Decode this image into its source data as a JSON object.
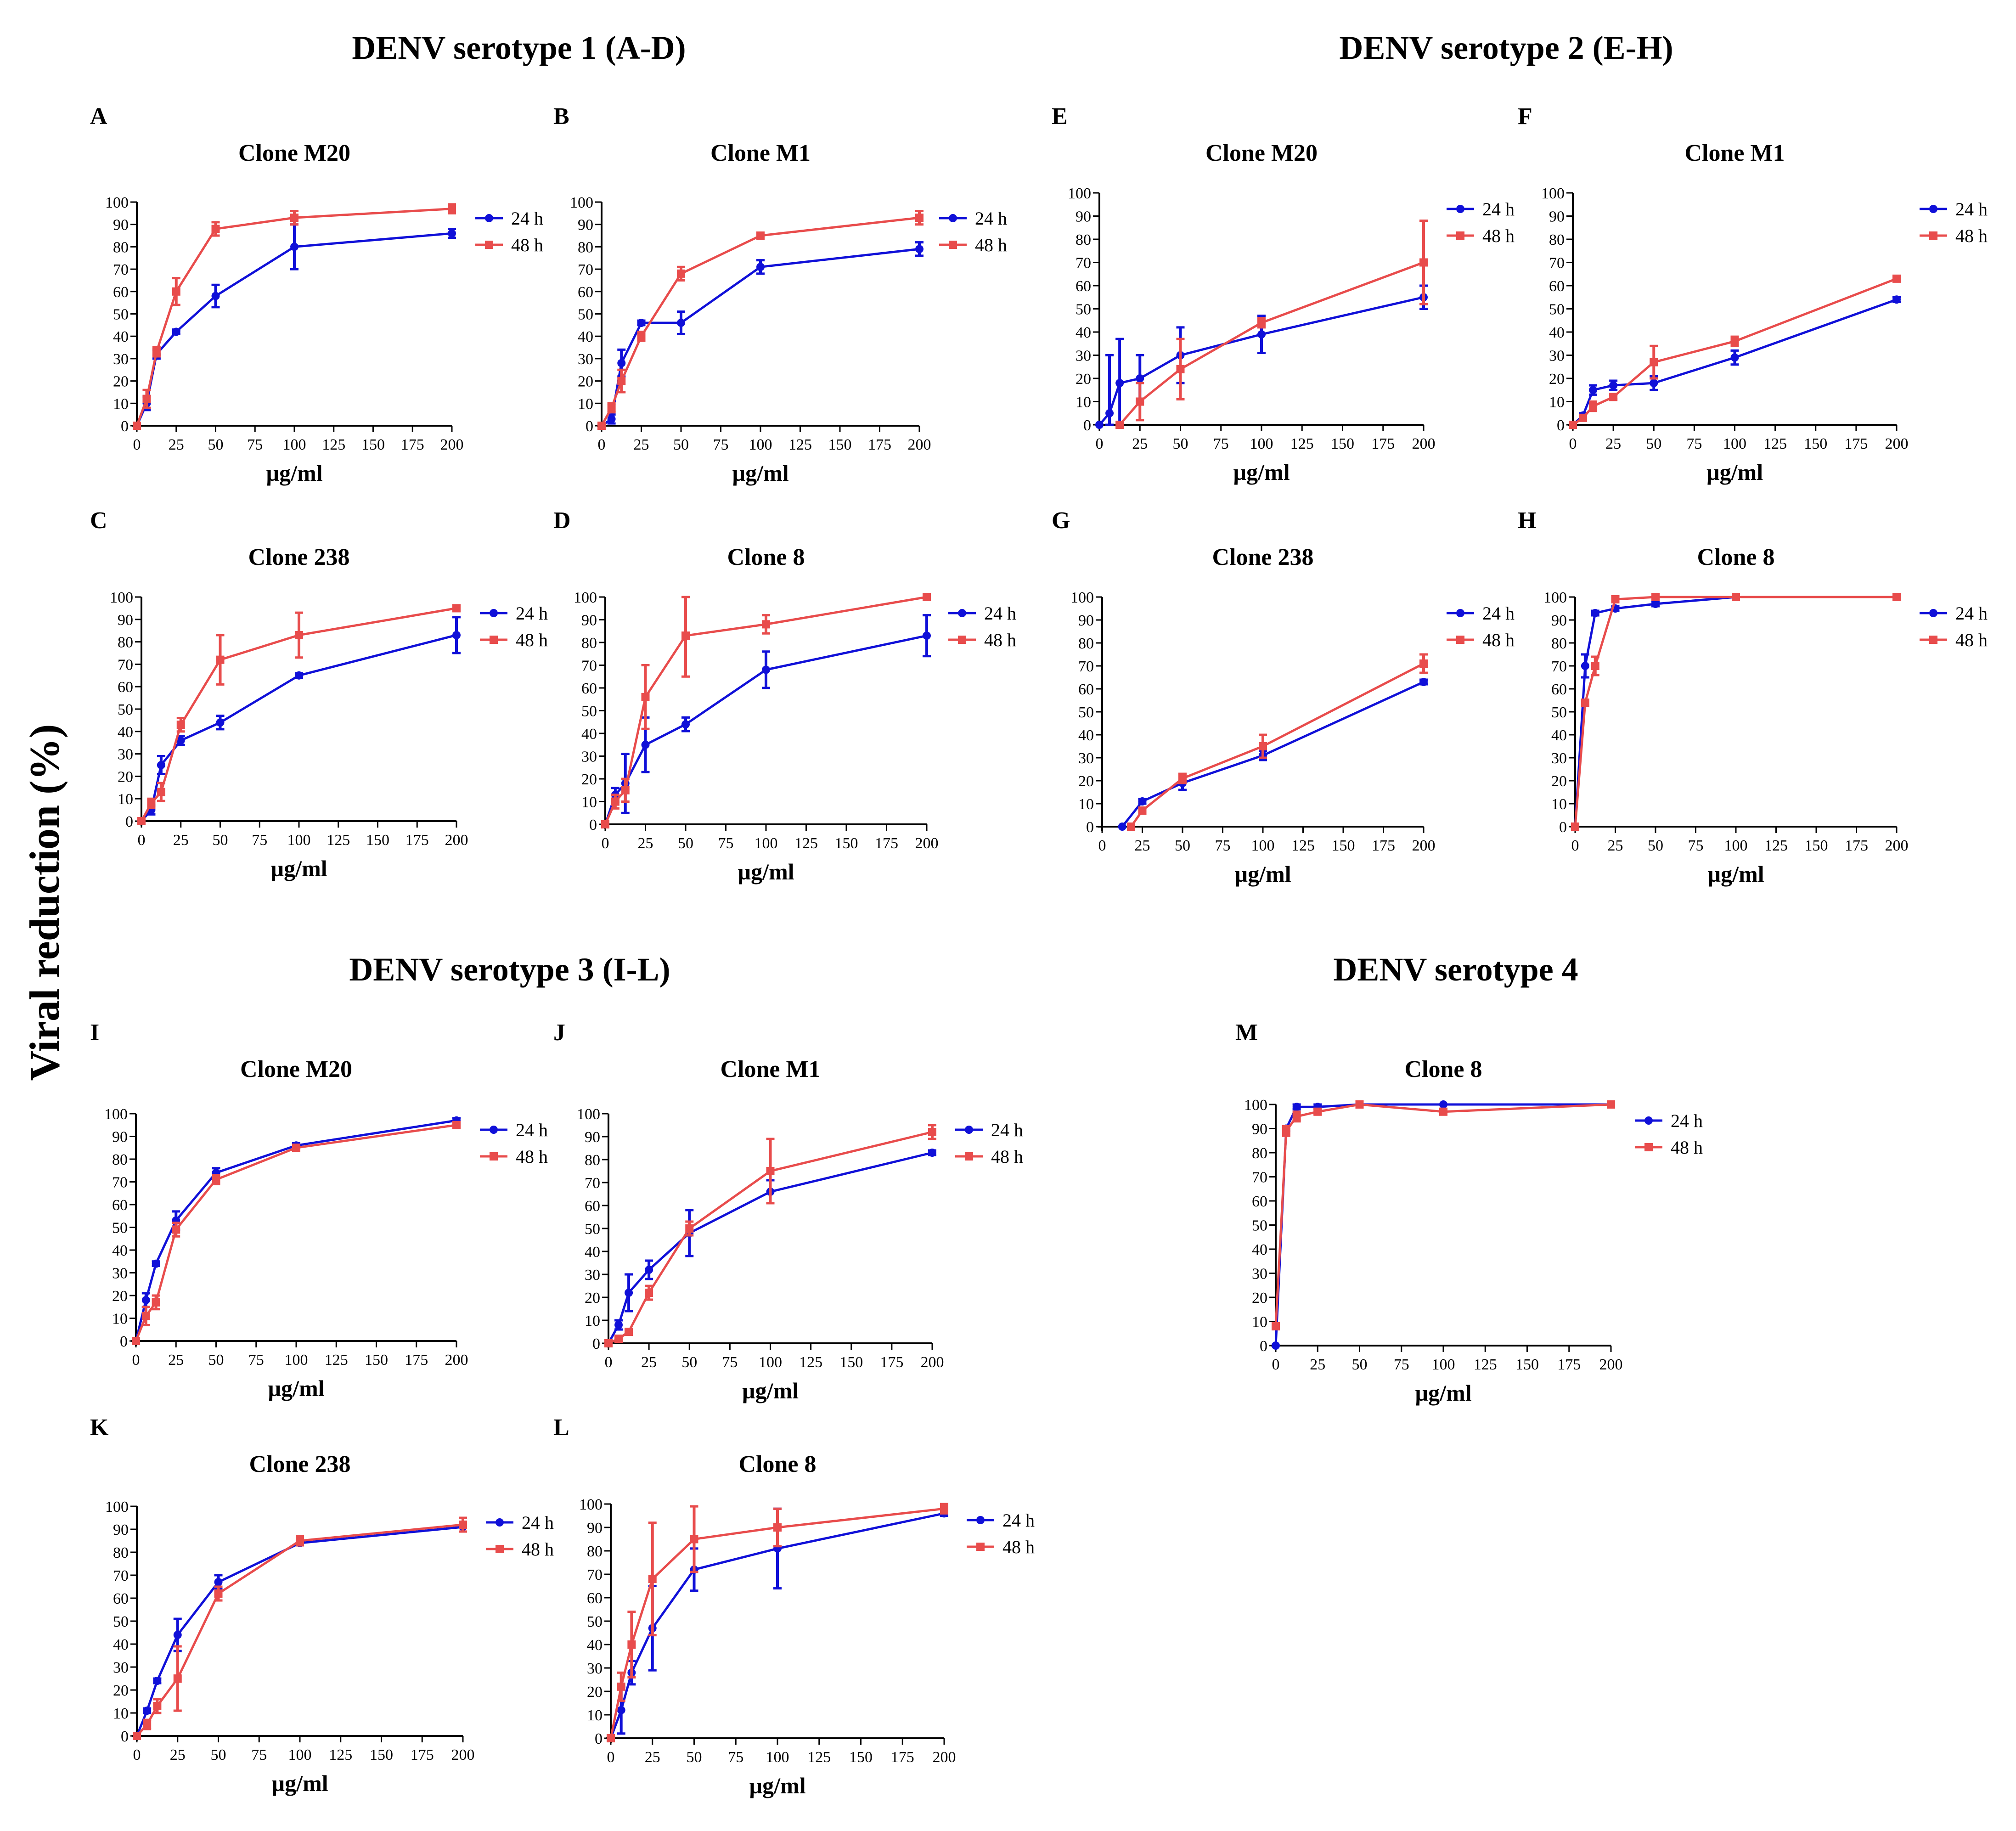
{
  "y_axis_label": "Viral reduction (%)",
  "colors": {
    "h24": "#1010d8",
    "h48": "#e84c4c"
  },
  "section_titles": [
    "DENV serotype 1 (A-D)",
    "DENV serotype 2 (E-H)",
    "DENV serotype 3 (I-L)",
    "DENV serotype 4"
  ],
  "chart_data": [
    {
      "panel": "A",
      "title": "Clone M20",
      "type": "line",
      "xlabel": "µg/ml",
      "xlim": [
        0,
        200
      ],
      "ylim": [
        0,
        100
      ],
      "xticks": [
        0,
        25,
        50,
        75,
        100,
        125,
        150,
        175,
        200
      ],
      "yticks": [
        0,
        10,
        20,
        30,
        40,
        50,
        60,
        70,
        80,
        90,
        100
      ],
      "series": [
        {
          "name": "24 h",
          "x": [
            0,
            6.25,
            12.5,
            25,
            50,
            100,
            200
          ],
          "y": [
            0,
            10,
            32,
            42,
            58,
            80,
            86
          ],
          "err": [
            0,
            3,
            2,
            1,
            5,
            10,
            2
          ]
        },
        {
          "name": "48 h",
          "x": [
            0,
            6.25,
            12.5,
            25,
            50,
            100,
            200
          ],
          "y": [
            0,
            12,
            33,
            60,
            88,
            93,
            97
          ],
          "err": [
            0,
            4,
            2,
            6,
            3,
            3,
            2
          ]
        }
      ]
    },
    {
      "panel": "B",
      "title": "Clone M1",
      "type": "line",
      "xlabel": "µg/ml",
      "xlim": [
        0,
        200
      ],
      "ylim": [
        0,
        100
      ],
      "xticks": [
        0,
        25,
        50,
        75,
        100,
        125,
        150,
        175,
        200
      ],
      "yticks": [
        0,
        10,
        20,
        30,
        40,
        50,
        60,
        70,
        80,
        90,
        100
      ],
      "series": [
        {
          "name": "24 h",
          "x": [
            0,
            6.25,
            12.5,
            25,
            50,
            100,
            200
          ],
          "y": [
            0,
            3,
            28,
            46,
            46,
            71,
            79
          ],
          "err": [
            0,
            2,
            6,
            1,
            5,
            3,
            3
          ]
        },
        {
          "name": "48 h",
          "x": [
            0,
            6.25,
            12.5,
            25,
            50,
            100,
            200
          ],
          "y": [
            0,
            8,
            20,
            40,
            68,
            85,
            93
          ],
          "err": [
            0,
            2,
            5,
            2,
            3,
            1,
            3
          ]
        }
      ]
    },
    {
      "panel": "C",
      "title": "Clone 238",
      "type": "line",
      "xlabel": "µg/ml",
      "xlim": [
        0,
        200
      ],
      "ylim": [
        0,
        100
      ],
      "xticks": [
        0,
        25,
        50,
        75,
        100,
        125,
        150,
        175,
        200
      ],
      "yticks": [
        0,
        10,
        20,
        30,
        40,
        50,
        60,
        70,
        80,
        90,
        100
      ],
      "series": [
        {
          "name": "24 h",
          "x": [
            0,
            6.25,
            12.5,
            25,
            50,
            100,
            200
          ],
          "y": [
            0,
            5,
            25,
            36,
            44,
            65,
            83
          ],
          "err": [
            0,
            2,
            4,
            2,
            3,
            1,
            8
          ]
        },
        {
          "name": "48 h",
          "x": [
            0,
            6.25,
            12.5,
            25,
            50,
            100,
            200
          ],
          "y": [
            0,
            8,
            13,
            43,
            72,
            83,
            95
          ],
          "err": [
            0,
            2,
            4,
            3,
            11,
            10,
            1
          ]
        }
      ]
    },
    {
      "panel": "D",
      "title": "Clone 8",
      "type": "line",
      "xlabel": "µg/ml",
      "xlim": [
        0,
        200
      ],
      "ylim": [
        0,
        100
      ],
      "xticks": [
        0,
        25,
        50,
        75,
        100,
        125,
        150,
        175,
        200
      ],
      "yticks": [
        0,
        10,
        20,
        30,
        40,
        50,
        60,
        70,
        80,
        90,
        100
      ],
      "series": [
        {
          "name": "24 h",
          "x": [
            0,
            6.25,
            12.5,
            25,
            50,
            100,
            200
          ],
          "y": [
            0,
            13,
            18,
            35,
            44,
            68,
            83
          ],
          "err": [
            0,
            3,
            13,
            12,
            3,
            8,
            9
          ]
        },
        {
          "name": "48 h",
          "x": [
            0,
            6.25,
            12.5,
            25,
            50,
            100,
            200
          ],
          "y": [
            0,
            10,
            15,
            56,
            83,
            88,
            100
          ],
          "err": [
            0,
            3,
            5,
            14,
            18,
            4,
            1
          ]
        }
      ]
    },
    {
      "panel": "E",
      "title": "Clone M20",
      "type": "line",
      "xlabel": "µg/ml",
      "xlim": [
        0,
        200
      ],
      "ylim": [
        0,
        100
      ],
      "xticks": [
        0,
        25,
        50,
        75,
        100,
        125,
        150,
        175,
        200
      ],
      "yticks": [
        0,
        10,
        20,
        30,
        40,
        50,
        60,
        70,
        80,
        90,
        100
      ],
      "series": [
        {
          "name": "24 h",
          "x": [
            0,
            6.25,
            12.5,
            25,
            50,
            100,
            200
          ],
          "y": [
            0,
            5,
            18,
            20,
            30,
            39,
            55
          ],
          "err": [
            0,
            25,
            19,
            10,
            12,
            8,
            5
          ]
        },
        {
          "name": "48 h",
          "x": [
            12.5,
            25,
            50,
            100,
            200
          ],
          "y": [
            0,
            10,
            24,
            44,
            70
          ],
          "err": [
            0,
            8,
            13,
            2,
            18
          ]
        }
      ]
    },
    {
      "panel": "F",
      "title": "Clone M1",
      "type": "line",
      "xlabel": "µg/ml",
      "xlim": [
        0,
        200
      ],
      "ylim": [
        0,
        100
      ],
      "xticks": [
        0,
        25,
        50,
        75,
        100,
        125,
        150,
        175,
        200
      ],
      "yticks": [
        0,
        10,
        20,
        30,
        40,
        50,
        60,
        70,
        80,
        90,
        100
      ],
      "series": [
        {
          "name": "24 h",
          "x": [
            0,
            6.25,
            12.5,
            25,
            50,
            100,
            200
          ],
          "y": [
            0,
            4,
            15,
            17,
            18,
            29,
            54
          ],
          "err": [
            0,
            1,
            2,
            2,
            3,
            3,
            1
          ]
        },
        {
          "name": "48 h",
          "x": [
            0,
            6.25,
            12.5,
            25,
            50,
            100,
            200
          ],
          "y": [
            0,
            3,
            8,
            12,
            27,
            36,
            63
          ],
          "err": [
            0,
            1,
            2,
            1,
            7,
            2,
            1
          ]
        }
      ]
    },
    {
      "panel": "G",
      "title": "Clone 238",
      "type": "line",
      "xlabel": "µg/ml",
      "xlim": [
        0,
        200
      ],
      "ylim": [
        0,
        100
      ],
      "xticks": [
        0,
        25,
        50,
        75,
        100,
        125,
        150,
        175,
        200
      ],
      "yticks": [
        0,
        10,
        20,
        30,
        40,
        50,
        60,
        70,
        80,
        90,
        100
      ],
      "series": [
        {
          "name": "24 h",
          "x": [
            12.5,
            25,
            50,
            100,
            200
          ],
          "y": [
            0,
            11,
            19,
            31,
            63
          ],
          "err": [
            0,
            1,
            3,
            2,
            1
          ]
        },
        {
          "name": "48 h",
          "x": [
            18,
            25,
            50,
            100,
            200
          ],
          "y": [
            0,
            7,
            21,
            35,
            71
          ],
          "err": [
            0,
            1,
            2,
            5,
            4
          ]
        }
      ]
    },
    {
      "panel": "H",
      "title": "Clone 8",
      "type": "line",
      "xlabel": "µg/ml",
      "xlim": [
        0,
        200
      ],
      "ylim": [
        0,
        100
      ],
      "xticks": [
        0,
        25,
        50,
        75,
        100,
        125,
        150,
        175,
        200
      ],
      "yticks": [
        0,
        10,
        20,
        30,
        40,
        50,
        60,
        70,
        80,
        90,
        100
      ],
      "series": [
        {
          "name": "24 h",
          "x": [
            0,
            6.25,
            12.5,
            25,
            50,
            100,
            200
          ],
          "y": [
            0,
            70,
            93,
            95,
            97,
            100,
            100
          ],
          "err": [
            0,
            5,
            1,
            1,
            1,
            0,
            0
          ]
        },
        {
          "name": "48 h",
          "x": [
            0,
            6.25,
            12.5,
            25,
            50,
            100,
            200
          ],
          "y": [
            0,
            54,
            70,
            99,
            100,
            100,
            100
          ],
          "err": [
            0,
            1,
            4,
            1,
            1,
            0,
            0
          ]
        }
      ]
    },
    {
      "panel": "I",
      "title": "Clone M20",
      "type": "line",
      "xlabel": "µg/ml",
      "xlim": [
        0,
        200
      ],
      "ylim": [
        0,
        100
      ],
      "xticks": [
        0,
        25,
        50,
        75,
        100,
        125,
        150,
        175,
        200
      ],
      "yticks": [
        0,
        10,
        20,
        30,
        40,
        50,
        60,
        70,
        80,
        90,
        100
      ],
      "series": [
        {
          "name": "24 h",
          "x": [
            0,
            6.25,
            12.5,
            25,
            50,
            100,
            200
          ],
          "y": [
            0,
            18,
            34,
            53,
            74,
            86,
            97
          ],
          "err": [
            0,
            3,
            1,
            4,
            2,
            1,
            1
          ]
        },
        {
          "name": "48 h",
          "x": [
            0,
            6.25,
            12.5,
            25,
            50,
            100,
            200
          ],
          "y": [
            0,
            11,
            17,
            49,
            71,
            85,
            95
          ],
          "err": [
            0,
            4,
            3,
            3,
            2,
            1,
            1
          ]
        }
      ]
    },
    {
      "panel": "J",
      "title": "Clone M1",
      "type": "line",
      "xlabel": "µg/ml",
      "xlim": [
        0,
        200
      ],
      "ylim": [
        0,
        100
      ],
      "xticks": [
        0,
        25,
        50,
        75,
        100,
        125,
        150,
        175,
        200
      ],
      "yticks": [
        0,
        10,
        20,
        30,
        40,
        50,
        60,
        70,
        80,
        90,
        100
      ],
      "series": [
        {
          "name": "24 h",
          "x": [
            0,
            6.25,
            12.5,
            25,
            50,
            100,
            200
          ],
          "y": [
            0,
            8,
            22,
            32,
            48,
            66,
            83
          ],
          "err": [
            0,
            2,
            8,
            4,
            10,
            5,
            1
          ]
        },
        {
          "name": "48 h",
          "x": [
            0,
            6.25,
            12.5,
            25,
            50,
            100,
            200
          ],
          "y": [
            0,
            2,
            5,
            22,
            50,
            75,
            92
          ],
          "err": [
            0,
            1,
            1,
            3,
            3,
            14,
            3
          ]
        }
      ]
    },
    {
      "panel": "K",
      "title": "Clone 238",
      "type": "line",
      "xlabel": "µg/ml",
      "xlim": [
        0,
        200
      ],
      "ylim": [
        0,
        100
      ],
      "xticks": [
        0,
        25,
        50,
        75,
        100,
        125,
        150,
        175,
        200
      ],
      "yticks": [
        0,
        10,
        20,
        30,
        40,
        50,
        60,
        70,
        80,
        90,
        100
      ],
      "series": [
        {
          "name": "24 h",
          "x": [
            0,
            6.25,
            12.5,
            25,
            50,
            100,
            200
          ],
          "y": [
            0,
            11,
            24,
            44,
            67,
            84,
            91
          ],
          "err": [
            0,
            1,
            1,
            7,
            3,
            1,
            2
          ]
        },
        {
          "name": "48 h",
          "x": [
            0,
            6.25,
            12.5,
            25,
            50,
            100,
            200
          ],
          "y": [
            0,
            5,
            13,
            25,
            62,
            85,
            92
          ],
          "err": [
            0,
            2,
            3,
            14,
            3,
            2,
            3
          ]
        }
      ]
    },
    {
      "panel": "L",
      "title": "Clone 8",
      "type": "line",
      "xlabel": "µg/ml",
      "xlim": [
        0,
        200
      ],
      "ylim": [
        0,
        100
      ],
      "xticks": [
        0,
        25,
        50,
        75,
        100,
        125,
        150,
        175,
        200
      ],
      "yticks": [
        0,
        10,
        20,
        30,
        40,
        50,
        60,
        70,
        80,
        90,
        100
      ],
      "series": [
        {
          "name": "24 h",
          "x": [
            0,
            6.25,
            12.5,
            25,
            50,
            100,
            200
          ],
          "y": [
            0,
            12,
            28,
            47,
            72,
            81,
            96
          ],
          "err": [
            0,
            10,
            5,
            18,
            9,
            17,
            1
          ]
        },
        {
          "name": "48 h",
          "x": [
            0,
            6.25,
            12.5,
            25,
            50,
            100,
            200
          ],
          "y": [
            0,
            22,
            40,
            68,
            85,
            90,
            98
          ],
          "err": [
            0,
            6,
            14,
            24,
            14,
            8,
            2
          ]
        }
      ]
    },
    {
      "panel": "M",
      "title": "Clone 8",
      "type": "line",
      "xlabel": "µg/ml",
      "xlim": [
        0,
        200
      ],
      "ylim": [
        0,
        100
      ],
      "xticks": [
        0,
        25,
        50,
        75,
        100,
        125,
        150,
        175,
        200
      ],
      "yticks": [
        0,
        10,
        20,
        30,
        40,
        50,
        60,
        70,
        80,
        90,
        100
      ],
      "series": [
        {
          "name": "24 h",
          "x": [
            0,
            6.25,
            12.5,
            25,
            50,
            100,
            200
          ],
          "y": [
            0,
            90,
            99,
            99,
            100,
            100,
            100
          ],
          "err": [
            0,
            1,
            1,
            1,
            0,
            0,
            0
          ]
        },
        {
          "name": "48 h",
          "x": [
            0,
            6.25,
            12.5,
            25,
            50,
            100,
            200
          ],
          "y": [
            8,
            89,
            95,
            97,
            100,
            97,
            100
          ],
          "err": [
            0,
            2,
            2,
            1,
            0,
            1,
            0
          ]
        }
      ]
    }
  ]
}
